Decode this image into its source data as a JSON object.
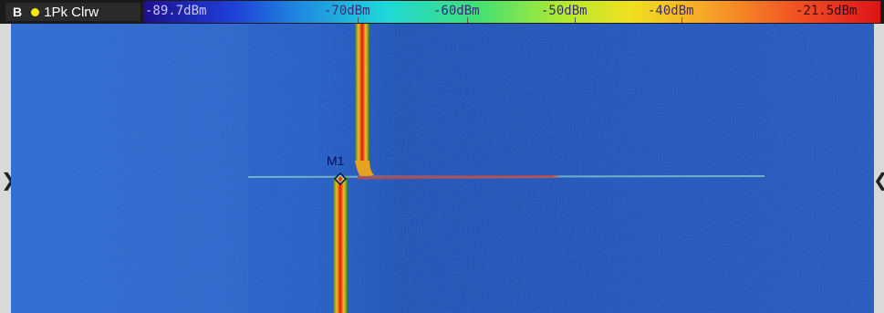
{
  "header": {
    "window_id": "B",
    "trace_name": "1Pk Clrw",
    "trace_dot_color": "#ffe600"
  },
  "colorbar": {
    "min_label": "-89.7dBm",
    "labels": [
      "-70dBm",
      "-60dBm",
      "-50dBm",
      "-40dBm"
    ],
    "max_label": "-21.5dBm"
  },
  "marker": {
    "label": "M1"
  },
  "nav": {
    "left_icon": "chevron-right-icon",
    "right_icon": "chevron-left-icon"
  }
}
